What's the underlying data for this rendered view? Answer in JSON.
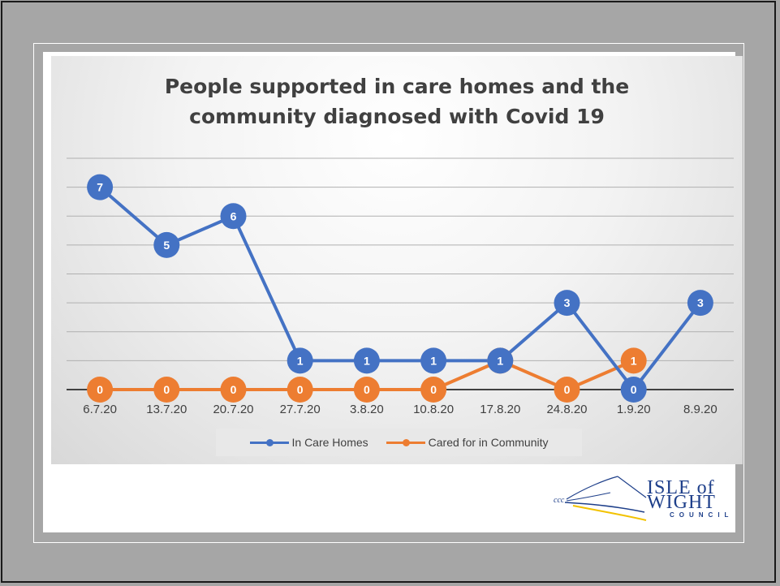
{
  "chart_data": {
    "type": "line",
    "title": "People supported in care homes and the community diagnosed with Covid 19",
    "title_lines": [
      "People supported in care homes and the",
      "community diagnosed with Covid 19"
    ],
    "categories": [
      "6.7.20",
      "13.7.20",
      "20.7.20",
      "27.7.20",
      "3.8.20",
      "10.8.20",
      "17.8.20",
      "24.8.20",
      "1.9.20",
      "8.9.20"
    ],
    "series": [
      {
        "name": "In Care Homes",
        "color": "#4472c4",
        "values": [
          7,
          5,
          6,
          1,
          1,
          1,
          1,
          3,
          0,
          3
        ]
      },
      {
        "name": "Cared for in Community",
        "color": "#ed7d31",
        "values": [
          0,
          0,
          0,
          0,
          0,
          0,
          1,
          0,
          1,
          null
        ]
      }
    ],
    "ylim": [
      0,
      8
    ],
    "grid": true,
    "legend": "bottom",
    "data_labels": true
  },
  "logo": {
    "line1": "ISLE of",
    "line2": "WIGHT",
    "line3": "COUNCIL"
  }
}
